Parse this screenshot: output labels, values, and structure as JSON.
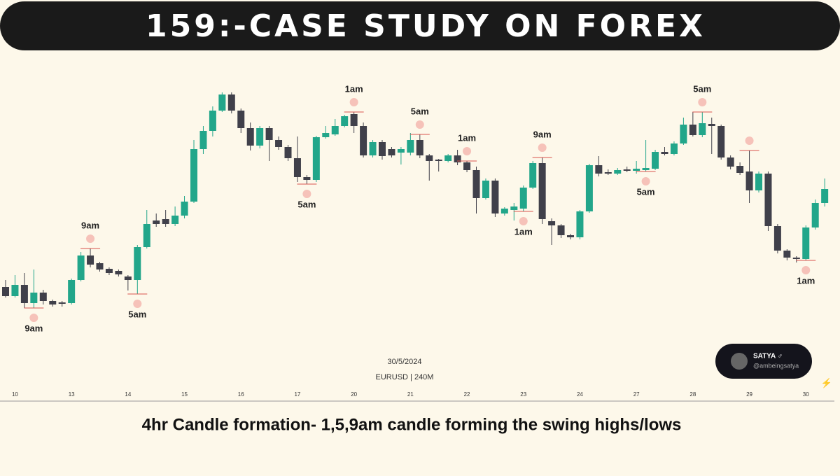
{
  "chart_data": {
    "type": "candlestick",
    "title": "159:-CASE STUDY ON FOREX",
    "date_label": "30/5/2024",
    "symbol_label": "EURUSD | 240M",
    "caption": "4hr Candle formation- 1,5,9am candle forming the swing highs/lows",
    "badge_name": "SATYA ♂",
    "badge_handle": "@ambeingsatya",
    "up_color": "#22a68a",
    "down_color": "#40404a",
    "ylim": [
      40,
      510
    ],
    "categories": [
      null,
      "10",
      null,
      null,
      null,
      null,
      null,
      "13",
      null,
      null,
      null,
      null,
      null,
      "14",
      null,
      null,
      null,
      null,
      null,
      "15",
      null,
      null,
      null,
      null,
      null,
      "16",
      null,
      null,
      null,
      null,
      null,
      "17",
      null,
      null,
      null,
      null,
      null,
      "20",
      null,
      null,
      null,
      null,
      null,
      "21",
      null,
      null,
      null,
      null,
      null,
      "22",
      null,
      null,
      null,
      null,
      null,
      "23",
      null,
      null,
      null,
      null,
      null,
      "24",
      null,
      null,
      null,
      null,
      null,
      "27",
      null,
      null,
      null,
      null,
      null,
      "28",
      null,
      null,
      null,
      null,
      null,
      "29",
      null,
      null,
      null,
      null,
      null,
      "30",
      null,
      null
    ],
    "open": [
      190,
      177,
      193,
      167,
      182,
      170,
      168,
      167,
      200,
      235,
      224,
      216,
      213,
      205,
      200,
      247,
      285,
      287,
      280,
      292,
      312,
      387,
      413,
      442,
      465,
      442,
      417,
      392,
      417,
      400,
      390,
      374,
      347,
      343,
      404,
      408,
      420,
      437,
      420,
      378,
      397,
      387,
      382,
      382,
      400,
      378,
      372,
      370,
      378,
      368,
      357,
      317,
      342,
      295,
      300,
      302,
      332,
      367,
      284,
      278,
      264,
      261,
      298,
      364,
      354,
      352,
      358,
      356,
      357,
      359,
      383,
      380,
      395,
      422,
      407,
      423,
      420,
      375,
      363,
      355,
      328,
      352,
      277,
      242,
      232,
      230,
      275,
      310
    ],
    "high": [
      200,
      207,
      210,
      215,
      186,
      172,
      170,
      202,
      240,
      245,
      226,
      218,
      215,
      207,
      250,
      300,
      295,
      300,
      305,
      320,
      400,
      420,
      448,
      468,
      468,
      445,
      425,
      420,
      420,
      405,
      393,
      405,
      350,
      406,
      420,
      430,
      436,
      440,
      425,
      400,
      400,
      390,
      390,
      410,
      408,
      380,
      373,
      380,
      386,
      370,
      362,
      345,
      345,
      304,
      310,
      335,
      370,
      375,
      288,
      280,
      266,
      300,
      366,
      377,
      358,
      360,
      362,
      370,
      400,
      386,
      390,
      398,
      432,
      440,
      440,
      432,
      422,
      378,
      368,
      385,
      355,
      355,
      280,
      244,
      234,
      278,
      315,
      345
    ],
    "low": [
      175,
      175,
      160,
      160,
      165,
      162,
      162,
      165,
      198,
      218,
      212,
      207,
      205,
      185,
      180,
      245,
      276,
      276,
      277,
      288,
      310,
      380,
      405,
      440,
      438,
      410,
      385,
      388,
      370,
      386,
      370,
      340,
      337,
      340,
      402,
      406,
      418,
      410,
      375,
      375,
      372,
      375,
      365,
      378,
      374,
      342,
      355,
      368,
      364,
      354,
      295,
      315,
      290,
      292,
      285,
      298,
      330,
      280,
      250,
      260,
      258,
      258,
      296,
      348,
      350,
      350,
      354,
      352,
      355,
      357,
      378,
      378,
      393,
      405,
      404,
      380,
      372,
      358,
      350,
      310,
      325,
      270,
      238,
      228,
      225,
      228,
      272,
      305
    ],
    "close": [
      177,
      193,
      167,
      182,
      170,
      165,
      166,
      200,
      235,
      222,
      215,
      210,
      208,
      200,
      247,
      280,
      280,
      280,
      292,
      312,
      387,
      413,
      442,
      465,
      442,
      417,
      392,
      417,
      400,
      390,
      374,
      347,
      343,
      404,
      410,
      420,
      434,
      420,
      378,
      397,
      377,
      378,
      387,
      400,
      378,
      370,
      370,
      378,
      368,
      357,
      317,
      342,
      295,
      302,
      305,
      332,
      367,
      287,
      278,
      264,
      261,
      298,
      364,
      352,
      352,
      357,
      356,
      359,
      360,
      383,
      380,
      395,
      422,
      407,
      424,
      420,
      375,
      362,
      353,
      328,
      352,
      277,
      242,
      232,
      230,
      275,
      310,
      330
    ],
    "annotations": [
      "9am",
      "9am",
      "5am",
      "5am",
      "1am",
      "5am",
      "1am",
      "1am",
      "9am",
      "5am",
      "5am",
      "1am"
    ]
  }
}
